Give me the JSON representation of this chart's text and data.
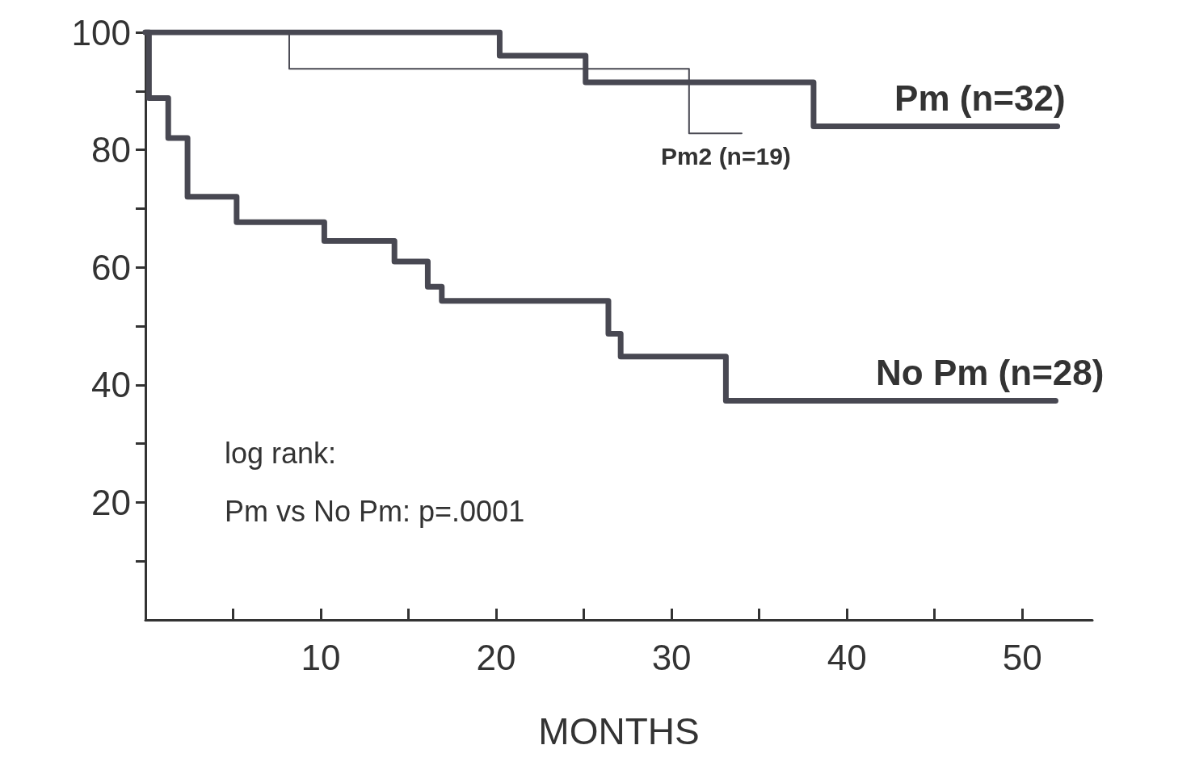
{
  "chart_data": {
    "type": "step",
    "xlabel": "MONTHS",
    "xlim": [
      0,
      54
    ],
    "ylim": [
      0,
      100
    ],
    "xticks": [
      {
        "value": 5,
        "label": null
      },
      10,
      {
        "value": 15,
        "label": null
      },
      20,
      {
        "value": 25,
        "label": null
      },
      30,
      {
        "value": 35,
        "label": null
      },
      40,
      {
        "value": 45,
        "label": null
      },
      50
    ],
    "yticks": [
      {
        "value": 10,
        "label": null
      },
      20,
      {
        "value": 30,
        "label": null
      },
      40,
      {
        "value": 50,
        "label": null
      },
      60,
      {
        "value": 70,
        "label": null
      },
      80,
      {
        "value": 90,
        "label": null
      },
      100
    ],
    "grid": false,
    "legend": false,
    "marker": "none",
    "line_style": "solid",
    "series": [
      {
        "name": "Pm (n=32)",
        "color": "#484852",
        "x": [
          0,
          20.2,
          25.1,
          38.1,
          52
        ],
        "values": [
          100,
          96,
          91.5,
          84,
          84
        ]
      },
      {
        "name": "Pm2 (n=19)",
        "color": "#484852",
        "x": [
          0,
          8.2,
          31,
          34
        ],
        "values": [
          100,
          93.8,
          82.8,
          82.8
        ]
      },
      {
        "name": "No Pm (n=28)",
        "color": "#484852",
        "x": [
          0,
          0.2,
          1.3,
          2.4,
          5.2,
          10.2,
          14.2,
          16.1,
          16.9,
          26.4,
          27.1,
          33.1,
          51.9
        ],
        "values": [
          100,
          88.8,
          82,
          72,
          67.7,
          64.5,
          61,
          56.7,
          54.3,
          48.7,
          44.8,
          37.3,
          37.3
        ]
      }
    ],
    "annotations": [
      "log rank:",
      "Pm vs No Pm: p=.0001"
    ]
  }
}
